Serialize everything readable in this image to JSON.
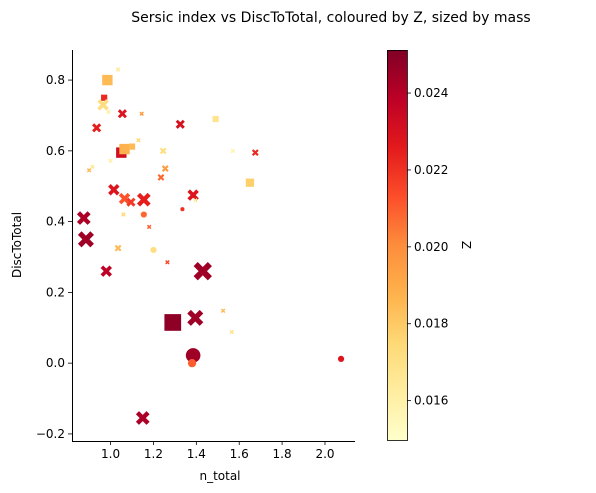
{
  "chart_data": {
    "type": "scatter",
    "title": "Sersic index vs DiscToTotal, coloured by Z, sized by mass",
    "xlabel": "n_total",
    "ylabel": "DiscToTotal",
    "xlim": [
      0.82,
      2.14
    ],
    "ylim": [
      -0.22,
      0.885
    ],
    "xticks": [
      1.0,
      1.2,
      1.4,
      1.6,
      1.8,
      2.0
    ],
    "xtick_labels": [
      "1.0",
      "1.2",
      "1.4",
      "1.6",
      "1.8",
      "2.0"
    ],
    "yticks": [
      -0.2,
      0.0,
      0.2,
      0.4,
      0.6,
      0.8
    ],
    "ytick_labels": [
      "−0.2",
      "0.0",
      "0.2",
      "0.4",
      "0.6",
      "0.8"
    ],
    "grid": false,
    "legend": "none",
    "colorbar": {
      "label": "Z",
      "colormap": "YlOrRd",
      "range": [
        0.01495,
        0.02512
      ],
      "ticks": [
        0.016,
        0.018,
        0.02,
        0.022,
        0.024
      ],
      "tick_labels": [
        "0.016",
        "0.018",
        "0.020",
        "0.022",
        "0.024"
      ]
    },
    "colormap_stops": [
      "#ffffcc",
      "#ffeda0",
      "#fed976",
      "#feb24c",
      "#fd8d3c",
      "#fc4e2a",
      "#e31a1c",
      "#bd0026",
      "#800026"
    ],
    "marker_types": [
      "circle",
      "square",
      "x"
    ],
    "points": [
      {
        "x": 0.985,
        "y": 0.8,
        "z": 0.0185,
        "m": 4,
        "marker": "square"
      },
      {
        "x": 1.035,
        "y": 0.83,
        "z": 0.0165,
        "m": 1,
        "marker": "x"
      },
      {
        "x": 0.97,
        "y": 0.75,
        "z": 0.0222,
        "m": 2,
        "marker": "square"
      },
      {
        "x": 0.965,
        "y": 0.73,
        "z": 0.0172,
        "m": 4,
        "marker": "x"
      },
      {
        "x": 0.99,
        "y": 0.71,
        "z": 0.016,
        "m": 1,
        "marker": "x"
      },
      {
        "x": 0.935,
        "y": 0.665,
        "z": 0.0225,
        "m": 3,
        "marker": "x"
      },
      {
        "x": 1.055,
        "y": 0.705,
        "z": 0.0228,
        "m": 3,
        "marker": "x"
      },
      {
        "x": 1.145,
        "y": 0.705,
        "z": 0.0195,
        "m": 1,
        "marker": "x"
      },
      {
        "x": 1.325,
        "y": 0.675,
        "z": 0.023,
        "m": 3,
        "marker": "x"
      },
      {
        "x": 1.49,
        "y": 0.69,
        "z": 0.0168,
        "m": 2,
        "marker": "square"
      },
      {
        "x": 1.05,
        "y": 0.595,
        "z": 0.0232,
        "m": 4,
        "marker": "square"
      },
      {
        "x": 1.065,
        "y": 0.605,
        "z": 0.0188,
        "m": 4,
        "marker": "square"
      },
      {
        "x": 1.1,
        "y": 0.612,
        "z": 0.0185,
        "m": 2,
        "marker": "square"
      },
      {
        "x": 1.13,
        "y": 0.63,
        "z": 0.0175,
        "m": 1,
        "marker": "x"
      },
      {
        "x": 1.245,
        "y": 0.6,
        "z": 0.0172,
        "m": 2,
        "marker": "x"
      },
      {
        "x": 1.57,
        "y": 0.6,
        "z": 0.0158,
        "m": 1,
        "marker": "x"
      },
      {
        "x": 1.675,
        "y": 0.595,
        "z": 0.0222,
        "m": 2,
        "marker": "x"
      },
      {
        "x": 0.9,
        "y": 0.545,
        "z": 0.0185,
        "m": 1,
        "marker": "x"
      },
      {
        "x": 0.915,
        "y": 0.555,
        "z": 0.0165,
        "m": 1,
        "marker": "x"
      },
      {
        "x": 1.0,
        "y": 0.572,
        "z": 0.016,
        "m": 1,
        "marker": "x"
      },
      {
        "x": 1.255,
        "y": 0.55,
        "z": 0.0195,
        "m": 2,
        "marker": "x"
      },
      {
        "x": 1.235,
        "y": 0.525,
        "z": 0.0208,
        "m": 2,
        "marker": "x"
      },
      {
        "x": 1.65,
        "y": 0.51,
        "z": 0.0178,
        "m": 3,
        "marker": "square"
      },
      {
        "x": 1.015,
        "y": 0.49,
        "z": 0.0228,
        "m": 4,
        "marker": "x"
      },
      {
        "x": 1.065,
        "y": 0.465,
        "z": 0.0212,
        "m": 4,
        "marker": "x"
      },
      {
        "x": 1.095,
        "y": 0.455,
        "z": 0.0218,
        "m": 3,
        "marker": "x"
      },
      {
        "x": 1.155,
        "y": 0.462,
        "z": 0.0225,
        "m": 5,
        "marker": "x"
      },
      {
        "x": 1.385,
        "y": 0.475,
        "z": 0.0228,
        "m": 4,
        "marker": "x"
      },
      {
        "x": 1.395,
        "y": 0.46,
        "z": 0.016,
        "m": 1,
        "marker": "x"
      },
      {
        "x": 1.06,
        "y": 0.42,
        "z": 0.0175,
        "m": 1,
        "marker": "x"
      },
      {
        "x": 1.155,
        "y": 0.42,
        "z": 0.0208,
        "m": 2,
        "marker": "circle"
      },
      {
        "x": 1.335,
        "y": 0.435,
        "z": 0.022,
        "m": 1,
        "marker": "circle"
      },
      {
        "x": 0.875,
        "y": 0.41,
        "z": 0.0242,
        "m": 5,
        "marker": "x"
      },
      {
        "x": 1.18,
        "y": 0.385,
        "z": 0.021,
        "m": 1,
        "marker": "x"
      },
      {
        "x": 0.885,
        "y": 0.35,
        "z": 0.0245,
        "m": 6,
        "marker": "x"
      },
      {
        "x": 1.035,
        "y": 0.325,
        "z": 0.0185,
        "m": 2,
        "marker": "x"
      },
      {
        "x": 1.2,
        "y": 0.32,
        "z": 0.0172,
        "m": 2,
        "marker": "circle"
      },
      {
        "x": 1.265,
        "y": 0.285,
        "z": 0.0215,
        "m": 1,
        "marker": "x"
      },
      {
        "x": 0.98,
        "y": 0.26,
        "z": 0.0238,
        "m": 4,
        "marker": "x"
      },
      {
        "x": 1.43,
        "y": 0.26,
        "z": 0.0245,
        "m": 7,
        "marker": "x"
      },
      {
        "x": 1.525,
        "y": 0.148,
        "z": 0.0185,
        "m": 1,
        "marker": "x"
      },
      {
        "x": 1.29,
        "y": 0.115,
        "z": 0.0248,
        "m": 7,
        "marker": "square"
      },
      {
        "x": 1.395,
        "y": 0.128,
        "z": 0.0245,
        "m": 6,
        "marker": "x"
      },
      {
        "x": 1.565,
        "y": 0.088,
        "z": 0.0168,
        "m": 1,
        "marker": "x"
      },
      {
        "x": 1.385,
        "y": 0.022,
        "z": 0.0245,
        "m": 6,
        "marker": "circle"
      },
      {
        "x": 1.38,
        "y": 0.0,
        "z": 0.021,
        "m": 3,
        "marker": "circle"
      },
      {
        "x": 2.075,
        "y": 0.012,
        "z": 0.0228,
        "m": 2,
        "marker": "circle"
      },
      {
        "x": 1.15,
        "y": -0.155,
        "z": 0.0242,
        "m": 5,
        "marker": "x"
      }
    ]
  }
}
